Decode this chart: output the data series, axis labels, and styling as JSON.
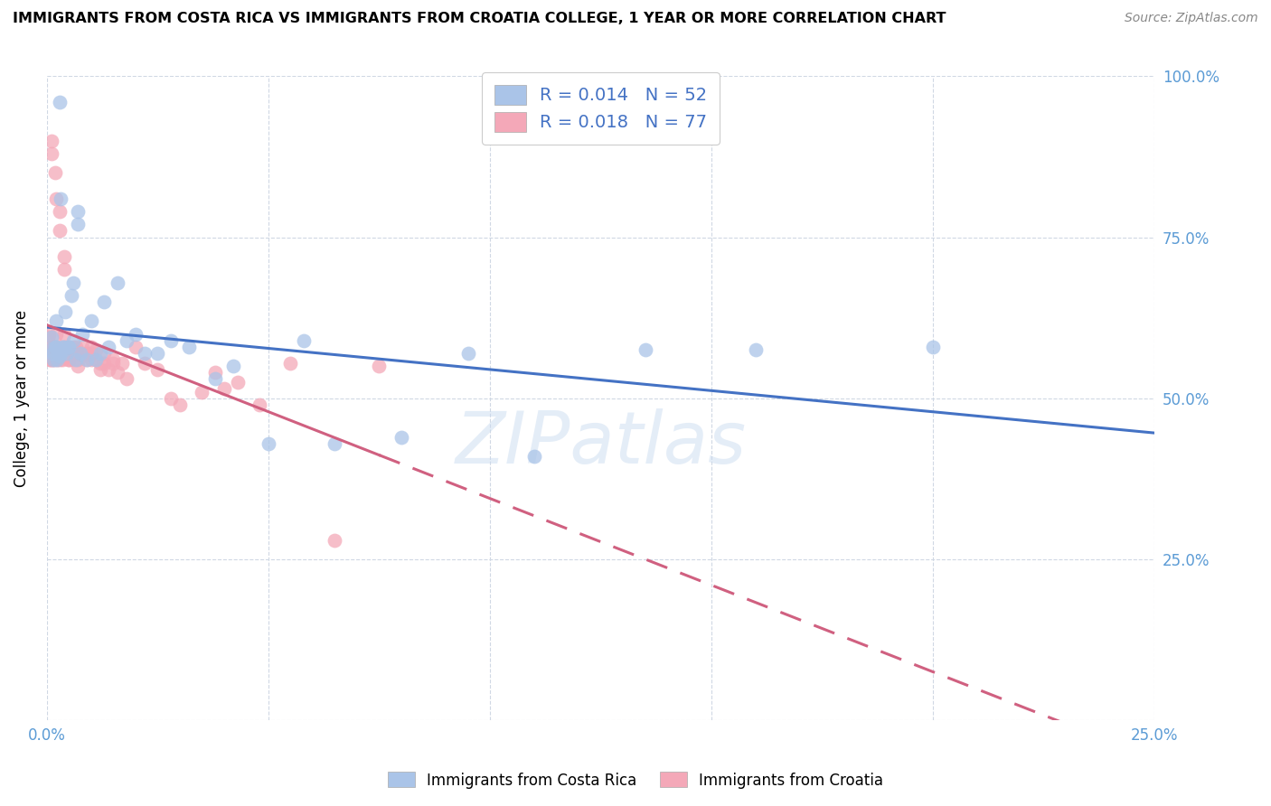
{
  "title": "IMMIGRANTS FROM COSTA RICA VS IMMIGRANTS FROM CROATIA COLLEGE, 1 YEAR OR MORE CORRELATION CHART",
  "source": "Source: ZipAtlas.com",
  "ylabel": "College, 1 year or more",
  "xlim": [
    0.0,
    0.25
  ],
  "ylim": [
    0.0,
    1.0
  ],
  "blue_color": "#aac4e8",
  "pink_color": "#f4a8b8",
  "blue_line_color": "#4472c4",
  "pink_line_color": "#d06080",
  "watermark": "ZIPatlas",
  "r_blue": "0.014",
  "n_blue": "52",
  "r_pink": "0.018",
  "n_pink": "77",
  "costa_rica_x": [
    0.0006,
    0.001,
    0.0013,
    0.0015,
    0.0018,
    0.002,
    0.002,
    0.0022,
    0.0025,
    0.003,
    0.003,
    0.003,
    0.0032,
    0.0035,
    0.004,
    0.004,
    0.0042,
    0.0045,
    0.005,
    0.005,
    0.0055,
    0.006,
    0.006,
    0.0065,
    0.007,
    0.007,
    0.0075,
    0.008,
    0.009,
    0.01,
    0.011,
    0.012,
    0.013,
    0.014,
    0.016,
    0.018,
    0.02,
    0.022,
    0.025,
    0.028,
    0.032,
    0.038,
    0.042,
    0.05,
    0.058,
    0.065,
    0.08,
    0.095,
    0.11,
    0.135,
    0.16,
    0.2
  ],
  "costa_rica_y": [
    0.575,
    0.595,
    0.57,
    0.56,
    0.58,
    0.58,
    0.62,
    0.56,
    0.575,
    0.96,
    0.57,
    0.565,
    0.81,
    0.58,
    0.575,
    0.58,
    0.635,
    0.57,
    0.58,
    0.58,
    0.66,
    0.59,
    0.68,
    0.56,
    0.79,
    0.77,
    0.57,
    0.6,
    0.56,
    0.62,
    0.56,
    0.57,
    0.65,
    0.58,
    0.68,
    0.59,
    0.6,
    0.57,
    0.57,
    0.59,
    0.58,
    0.53,
    0.55,
    0.43,
    0.59,
    0.43,
    0.44,
    0.57,
    0.41,
    0.575,
    0.575,
    0.58
  ],
  "croatia_x": [
    0.0002,
    0.0003,
    0.0004,
    0.0005,
    0.0006,
    0.0007,
    0.0008,
    0.0009,
    0.001,
    0.001,
    0.0012,
    0.0013,
    0.0014,
    0.0015,
    0.0016,
    0.0018,
    0.002,
    0.002,
    0.002,
    0.0022,
    0.0025,
    0.003,
    0.003,
    0.003,
    0.003,
    0.0032,
    0.0035,
    0.004,
    0.004,
    0.004,
    0.004,
    0.0042,
    0.0045,
    0.005,
    0.005,
    0.005,
    0.005,
    0.0055,
    0.006,
    0.006,
    0.006,
    0.0065,
    0.007,
    0.007,
    0.007,
    0.008,
    0.008,
    0.009,
    0.009,
    0.01,
    0.01,
    0.01,
    0.011,
    0.011,
    0.012,
    0.012,
    0.013,
    0.013,
    0.014,
    0.015,
    0.015,
    0.016,
    0.017,
    0.018,
    0.02,
    0.022,
    0.025,
    0.028,
    0.03,
    0.035,
    0.038,
    0.04,
    0.043,
    0.048,
    0.055,
    0.065,
    0.075
  ],
  "croatia_y": [
    0.595,
    0.58,
    0.6,
    0.57,
    0.56,
    0.58,
    0.57,
    0.56,
    0.9,
    0.88,
    0.57,
    0.56,
    0.58,
    0.57,
    0.56,
    0.85,
    0.81,
    0.6,
    0.58,
    0.56,
    0.57,
    0.79,
    0.76,
    0.57,
    0.56,
    0.58,
    0.56,
    0.72,
    0.7,
    0.58,
    0.6,
    0.57,
    0.575,
    0.57,
    0.56,
    0.58,
    0.56,
    0.575,
    0.58,
    0.57,
    0.56,
    0.58,
    0.57,
    0.56,
    0.55,
    0.58,
    0.57,
    0.57,
    0.56,
    0.57,
    0.56,
    0.58,
    0.56,
    0.575,
    0.555,
    0.545,
    0.57,
    0.555,
    0.545,
    0.56,
    0.555,
    0.54,
    0.555,
    0.53,
    0.58,
    0.555,
    0.545,
    0.5,
    0.49,
    0.51,
    0.54,
    0.515,
    0.525,
    0.49,
    0.555,
    0.28,
    0.55
  ]
}
